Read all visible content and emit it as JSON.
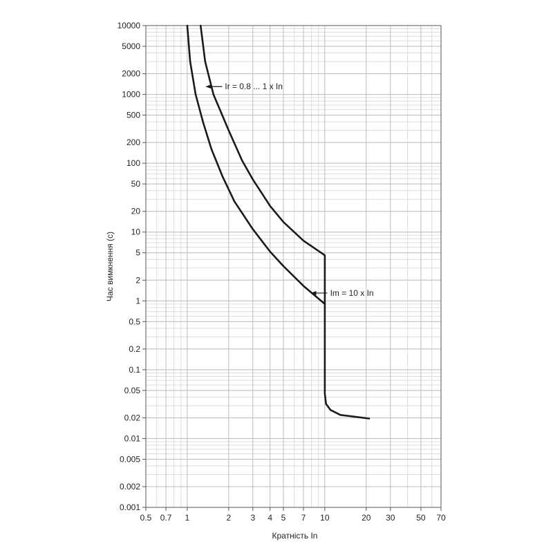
{
  "chart_data": {
    "type": "line",
    "xlabel": "Кратність In",
    "ylabel": "Час вимкнення (с)",
    "xscale": "log",
    "yscale": "log",
    "xlim": [
      0.5,
      70
    ],
    "ylim": [
      0.001,
      10000
    ],
    "grid": true,
    "x_ticks": [
      "0.5",
      "0.7",
      "1",
      "2",
      "3",
      "4",
      "5",
      "7",
      "10",
      "20",
      "30",
      "50",
      "70"
    ],
    "x_tick_values": [
      0.5,
      0.7,
      1,
      2,
      3,
      4,
      5,
      7,
      10,
      20,
      30,
      50,
      70
    ],
    "y_ticks": [
      "10000",
      "5000",
      "2000",
      "1000",
      "500",
      "200",
      "100",
      "50",
      "20",
      "10",
      "5",
      "2",
      "1",
      "0.5",
      "0.2",
      "0.1",
      "0.05",
      "0.02",
      "0.01",
      "0.005",
      "0.002",
      "0.001"
    ],
    "y_tick_values": [
      10000,
      5000,
      2000,
      1000,
      500,
      200,
      100,
      50,
      20,
      10,
      5,
      2,
      1,
      0.5,
      0.2,
      0.1,
      0.05,
      0.02,
      0.01,
      0.005,
      0.002,
      0.001
    ],
    "series": [
      {
        "points": [
          [
            1.0,
            10000
          ],
          [
            1.05,
            3000
          ],
          [
            1.15,
            1000
          ],
          [
            1.3,
            400
          ],
          [
            1.5,
            160
          ],
          [
            1.8,
            65
          ],
          [
            2.2,
            28
          ],
          [
            3,
            11
          ],
          [
            4,
            5.2
          ],
          [
            5,
            3.2
          ],
          [
            7,
            1.65
          ],
          [
            10,
            0.9
          ],
          [
            10,
            0.045
          ],
          [
            10.2,
            0.032
          ],
          [
            11,
            0.026
          ],
          [
            13,
            0.022
          ],
          [
            21,
            0.0195
          ]
        ]
      },
      {
        "points": [
          [
            1.25,
            10000
          ],
          [
            1.35,
            3000
          ],
          [
            1.55,
            1000
          ],
          [
            2,
            300
          ],
          [
            2.5,
            110
          ],
          [
            3,
            58
          ],
          [
            4,
            24
          ],
          [
            5,
            14
          ],
          [
            7,
            7.5
          ],
          [
            10,
            4.6
          ],
          [
            10,
            0.9
          ]
        ]
      }
    ],
    "annotations": [
      {
        "text": "Ir = 0.8 ... 1 x In",
        "x": 1.75,
        "y": 1300
      },
      {
        "text": "Im = 10 x In",
        "x": 10.2,
        "y": 1.3
      }
    ]
  }
}
